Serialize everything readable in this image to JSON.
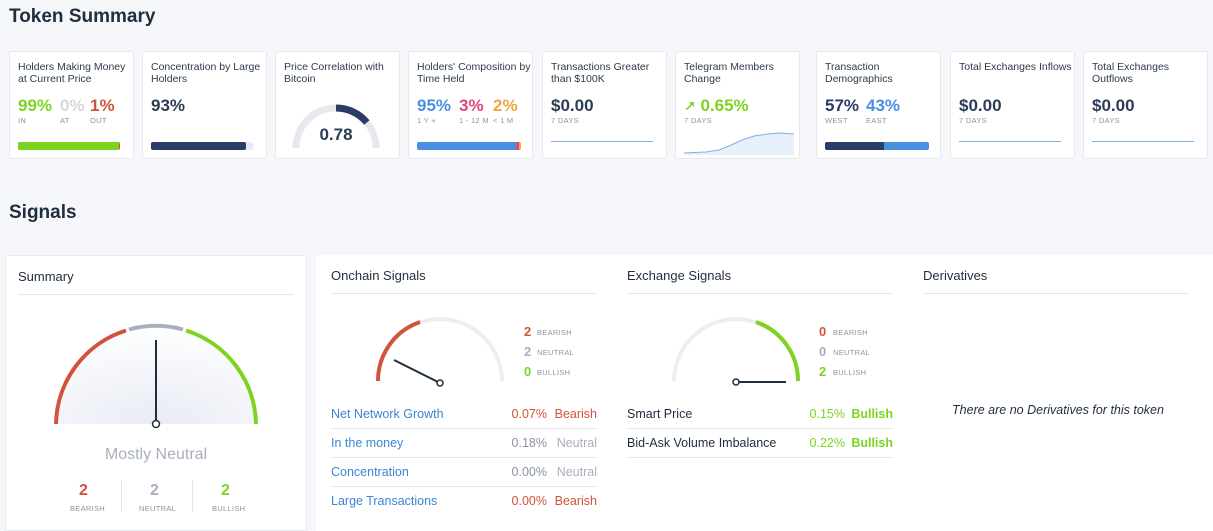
{
  "token_summary": {
    "title": "Token Summary",
    "cards": {
      "holders_money": {
        "title": "Holders Making Money at Current Price",
        "in": "99%",
        "at": "0%",
        "out": "1%",
        "in_lbl": "IN",
        "at_lbl": "AT",
        "out_lbl": "OUT",
        "in_fraction": 0.99
      },
      "concentration": {
        "title": "Concentration by Large Holders",
        "value": "93%",
        "fraction": 0.93
      },
      "correlation": {
        "title": "Price Correlation with Bitcoin",
        "value": "0.78",
        "fraction": 0.78
      },
      "composition": {
        "title": "Holders' Composition by Time Held",
        "v1": "95%",
        "v2": "3%",
        "v3": "2%",
        "l1": "1 Y +",
        "l2": "1 - 12 M",
        "l3": "< 1 M",
        "f1": 0.95,
        "f2": 0.03,
        "f3": 0.02
      },
      "transactions": {
        "title": "Transactions Greater than $100K",
        "value": "$0.00",
        "period": "7 DAYS"
      },
      "telegram": {
        "title": "Telegram Members Change",
        "value": "0.65%",
        "period": "7 DAYS"
      },
      "demographics": {
        "title": "Transaction Demographics",
        "west": "57%",
        "east": "43%",
        "west_lbl": "WEST",
        "east_lbl": "EAST",
        "west_fraction": 0.57
      },
      "inflows": {
        "title": "Total Exchanges Inflows",
        "value": "$0.00",
        "period": "7 DAYS"
      },
      "outflows": {
        "title": "Total Exchanges Outflows",
        "value": "$0.00",
        "period": "7 DAYS"
      }
    }
  },
  "signals": {
    "title": "Signals",
    "summary": {
      "title": "Summary",
      "verdict": "Mostly Neutral",
      "bearish": "2",
      "neutral": "2",
      "bullish": "2",
      "bearish_lbl": "BEARISH",
      "neutral_lbl": "NEUTRAL",
      "bullish_lbl": "BULLISH"
    },
    "onchain": {
      "title": "Onchain Signals",
      "bearish": "2",
      "neutral": "2",
      "bullish": "0",
      "bearish_lbl": "BEARISH",
      "neutral_lbl": "NEUTRAL",
      "bullish_lbl": "BULLISH",
      "rows": [
        {
          "name": "Net Network Growth",
          "value": "0.07%",
          "label": "Bearish"
        },
        {
          "name": "In the money",
          "value": "0.18%",
          "label": "Neutral"
        },
        {
          "name": "Concentration",
          "value": "0.00%",
          "label": "Neutral"
        },
        {
          "name": "Large Transactions",
          "value": "0.00%",
          "label": "Bearish"
        }
      ]
    },
    "exchange": {
      "title": "Exchange Signals",
      "bearish": "0",
      "neutral": "0",
      "bullish": "2",
      "bearish_lbl": "BEARISH",
      "neutral_lbl": "NEUTRAL",
      "bullish_lbl": "BULLISH",
      "rows": [
        {
          "name": "Smart Price",
          "value": "0.15%",
          "label": "Bullish"
        },
        {
          "name": "Bid-Ask Volume Imbalance",
          "value": "0.22%",
          "label": "Bullish"
        }
      ]
    },
    "derivatives": {
      "title": "Derivatives",
      "empty": "There are no Derivatives for this token"
    }
  },
  "colors": {
    "bearish": "#d2533c",
    "neutral": "#a8b0bb",
    "bullish": "#7ed321",
    "navy": "#2b3d66",
    "blue": "#4a90e2"
  }
}
